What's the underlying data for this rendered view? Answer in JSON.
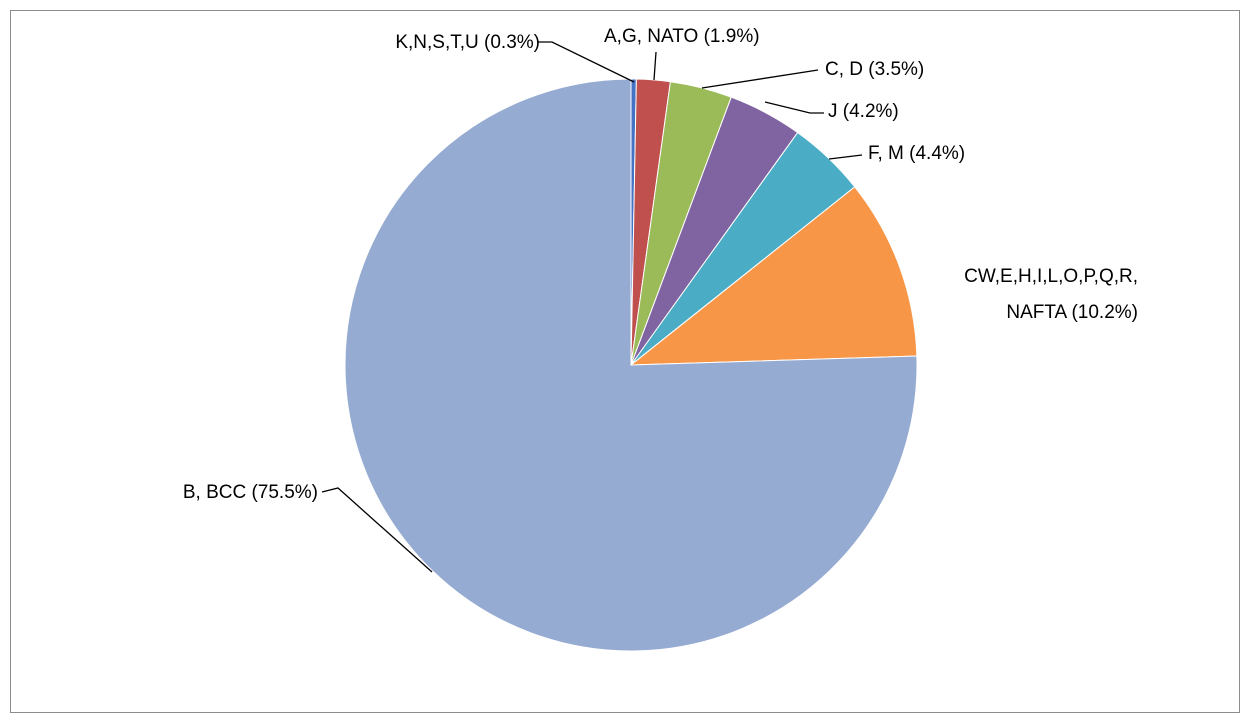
{
  "chart_data": {
    "type": "pie",
    "title": "",
    "start_angle_deg": 0,
    "direction": "clockwise",
    "slices": [
      {
        "label_lines": [
          "K,N,S,T,U (0.3%)"
        ],
        "value": 0.3,
        "color": "#4472c4"
      },
      {
        "label_lines": [
          "A,G, NATO (1.9%)"
        ],
        "value": 1.9,
        "color": "#c0504d"
      },
      {
        "label_lines": [
          "C, D (3.5%)"
        ],
        "value": 3.5,
        "color": "#9bbb59"
      },
      {
        "label_lines": [
          "J (4.2%)"
        ],
        "value": 4.2,
        "color": "#8064a2"
      },
      {
        "label_lines": [
          "F, M (4.4%)"
        ],
        "value": 4.4,
        "color": "#4bacc6"
      },
      {
        "label_lines": [
          "CW,E,H,I,L,O,P,Q,R,",
          "NAFTA (10.2%)"
        ],
        "value": 10.2,
        "color": "#f79646"
      },
      {
        "label_lines": [
          "B, BCC (75.5%)"
        ],
        "value": 75.5,
        "color": "#95abd1"
      }
    ]
  }
}
